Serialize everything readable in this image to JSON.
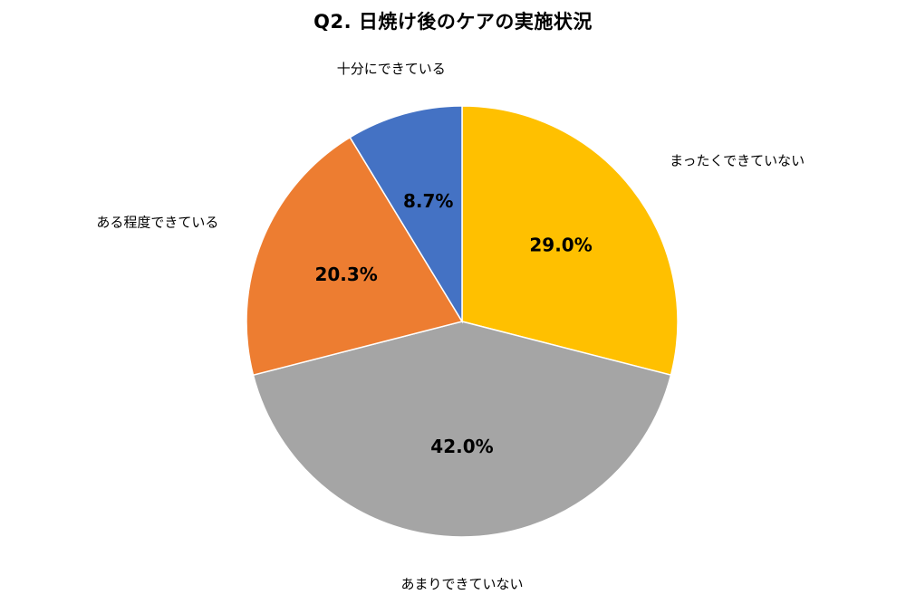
{
  "chart_data": {
    "type": "pie",
    "title": "Q2. 日焼け後のケアの実施状況",
    "categories": [
      "まったくできていない",
      "あまりできていない",
      "ある程度できている",
      "十分にできている"
    ],
    "values": [
      29.0,
      42.0,
      20.3,
      8.7
    ],
    "value_labels": [
      "29.0%",
      "42.0%",
      "20.3%",
      "8.7%"
    ],
    "colors": [
      "#FFC000",
      "#A5A5A5",
      "#ED7D31",
      "#4472C4"
    ],
    "start": "12 o'clock",
    "direction": "clockwise",
    "legend": "none"
  }
}
